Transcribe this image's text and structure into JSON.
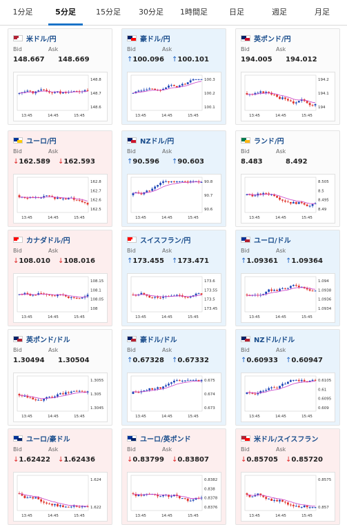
{
  "tabs": [
    {
      "label": "1分足",
      "active": false
    },
    {
      "label": "5分足",
      "active": true
    },
    {
      "label": "15分足",
      "active": false
    },
    {
      "label": "30分足",
      "active": false
    },
    {
      "label": "1時間足",
      "active": false
    },
    {
      "label": "日足",
      "active": false
    },
    {
      "label": "週足",
      "active": false
    },
    {
      "label": "月足",
      "active": false
    }
  ],
  "labels": {
    "bid": "Bid",
    "ask": "Ask"
  },
  "colors": {
    "up_candle": "#1f47b8",
    "down_candle": "#e0342c",
    "ma_line": "#c83cc8",
    "up_card": "#e8f3fc",
    "down_card": "#fdeeee",
    "tab_accent": "#1a73c8"
  },
  "cards": [
    {
      "pair": "米ドル/円",
      "flag": [
        "#b22234",
        "#ffffff"
      ],
      "trend": "flat",
      "bid": "148.667",
      "ask": "148.669",
      "xticks": [
        "13:45",
        "14:45",
        "15:45"
      ],
      "yticks": [
        "148.8",
        "148.7",
        "148.6"
      ],
      "seed": 1,
      "drift": 0.3
    },
    {
      "pair": "豪ドル/円",
      "flag": [
        "#012169",
        "#ff0000"
      ],
      "trend": "up",
      "bid": "100.096",
      "ask": "100.101",
      "xticks": [
        "13:45",
        "14:45",
        "15:45"
      ],
      "yticks": [
        "100.3",
        "100.2",
        "100.1"
      ],
      "seed": 2,
      "drift": -1
    },
    {
      "pair": "英ポンド/円",
      "flag": [
        "#012169",
        "#c8102e"
      ],
      "trend": "flat",
      "bid": "194.005",
      "ask": "194.012",
      "xticks": [
        "13:45",
        "14:45",
        "15:45"
      ],
      "yticks": [
        "194.2",
        "194.1",
        "194"
      ],
      "seed": 3,
      "drift": 0.4
    },
    {
      "pair": "ユーロ/円",
      "flag": [
        "#003399",
        "#ffcc00"
      ],
      "trend": "down",
      "bid": "162.589",
      "ask": "162.593",
      "xticks": [
        "13:45",
        "14:45",
        "15:45"
      ],
      "yticks": [
        "162.8",
        "162.7",
        "162.6",
        "162.5"
      ],
      "seed": 4,
      "drift": 0.3
    },
    {
      "pair": "NZドル/円",
      "flag": [
        "#012169",
        "#cc142b"
      ],
      "trend": "up",
      "bid": "90.596",
      "ask": "90.603",
      "xticks": [
        "13:45",
        "14:45",
        "15:45"
      ],
      "yticks": [
        "90.8",
        "90.7",
        "90.6"
      ],
      "seed": 5,
      "drift": -0.9
    },
    {
      "pair": "ランド/円",
      "flag": [
        "#007a4d",
        "#ffb612"
      ],
      "trend": "flat",
      "bid": "8.483",
      "ask": "8.492",
      "xticks": [
        "13:45",
        "14:45",
        "15:45"
      ],
      "yticks": [
        "8.505",
        "8.5",
        "8.495",
        "8.49"
      ],
      "seed": 6,
      "drift": 0
    },
    {
      "pair": "カナダドル/円",
      "flag": [
        "#ff0000",
        "#ffffff"
      ],
      "trend": "down",
      "bid": "108.010",
      "ask": "108.016",
      "xticks": [
        "13:45",
        "14:45",
        "15:45"
      ],
      "yticks": [
        "108.15",
        "108.1",
        "108.05",
        "108"
      ],
      "seed": 7,
      "drift": 0
    },
    {
      "pair": "スイスフラン/円",
      "flag": [
        "#ff0000",
        "#ffffff"
      ],
      "trend": "up",
      "bid": "173.455",
      "ask": "173.471",
      "xticks": [
        "13:45",
        "14:45",
        "15:45"
      ],
      "yticks": [
        "173.6",
        "173.55",
        "173.5",
        "173.45"
      ],
      "seed": 8,
      "drift": 0
    },
    {
      "pair": "ユーロ/ドル",
      "flag": [
        "#003399",
        "#b22234"
      ],
      "trend": "up",
      "bid": "1.09361",
      "ask": "1.09364",
      "xticks": [
        "13:45",
        "14:45",
        "15:45"
      ],
      "yticks": [
        "1.094",
        "1.0938",
        "1.0936",
        "1.0934"
      ],
      "seed": 9,
      "drift": -0.5
    },
    {
      "pair": "英ポンド/ドル",
      "flag": [
        "#012169",
        "#b22234"
      ],
      "trend": "flat",
      "bid": "1.30494",
      "ask": "1.30504",
      "xticks": [
        "13:45",
        "14:45",
        "15:45"
      ],
      "yticks": [
        "1.3055",
        "1.305",
        "1.3045"
      ],
      "seed": 10,
      "drift": -0.4
    },
    {
      "pair": "豪ドル/ドル",
      "flag": [
        "#012169",
        "#b22234"
      ],
      "trend": "up",
      "bid": "0.67328",
      "ask": "0.67332",
      "xticks": [
        "13:45",
        "14:45",
        "15:45"
      ],
      "yticks": [
        "0.675",
        "0.674",
        "0.673"
      ],
      "seed": 11,
      "drift": -1
    },
    {
      "pair": "NZドル/ドル",
      "flag": [
        "#012169",
        "#b22234"
      ],
      "trend": "up",
      "bid": "0.60933",
      "ask": "0.60947",
      "xticks": [
        "13:45",
        "14:45",
        "15:45"
      ],
      "yticks": [
        "0.6105",
        "0.61",
        "0.6095",
        "0.609"
      ],
      "seed": 12,
      "drift": -1
    },
    {
      "pair": "ユーロ/豪ドル",
      "flag": [
        "#003399",
        "#012169"
      ],
      "trend": "down",
      "bid": "1.62422",
      "ask": "1.62436",
      "xticks": [
        "13:45",
        "14:45",
        "15:45"
      ],
      "yticks": [
        "1.624",
        "1.622"
      ],
      "seed": 13,
      "drift": 1
    },
    {
      "pair": "ユーロ/英ポンド",
      "flag": [
        "#003399",
        "#012169"
      ],
      "trend": "down",
      "bid": "0.83799",
      "ask": "0.83807",
      "xticks": [
        "13:45",
        "14:45",
        "15:45"
      ],
      "yticks": [
        "0.8382",
        "0.838",
        "0.8378",
        "0.8376"
      ],
      "seed": 14,
      "drift": 0.6
    },
    {
      "pair": "米ドル/スイスフラン",
      "flag": [
        "#b22234",
        "#ff0000"
      ],
      "trend": "down",
      "bid": "0.85705",
      "ask": "0.85720",
      "xticks": [
        "13:45",
        "14:45",
        "15:45"
      ],
      "yticks": [
        "0.8575",
        "0.857"
      ],
      "seed": 15,
      "drift": 0.7
    }
  ]
}
